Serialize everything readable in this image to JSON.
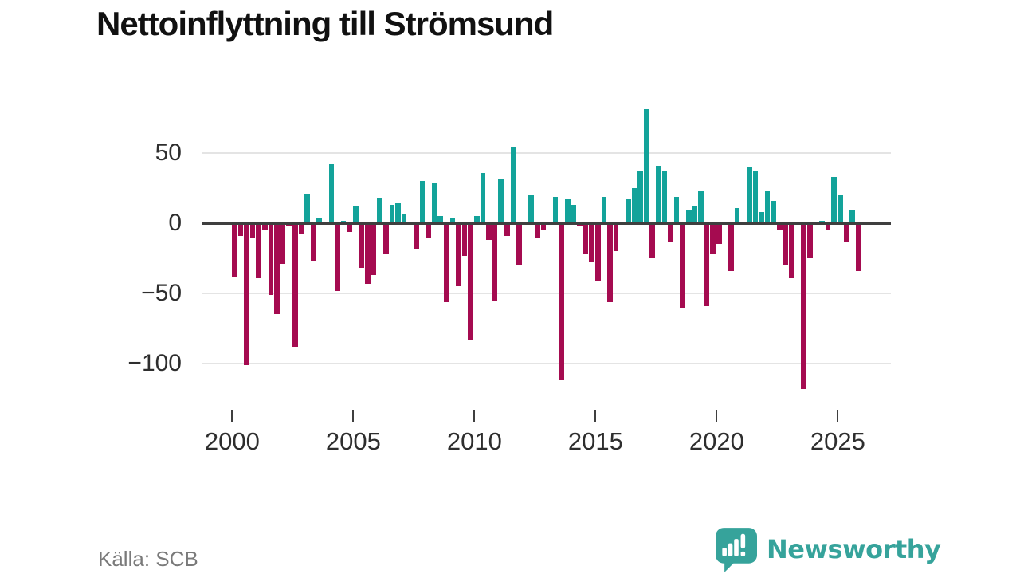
{
  "title": "Nettoinflyttning till Strömsund",
  "footer": {
    "source": "Källa: SCB",
    "brand": "Newsworthy"
  },
  "colors": {
    "positive": "#13a39a",
    "negative": "#a50b50",
    "axis": "#3f3f3f",
    "gridline": "#e4e4e4",
    "tick_label": "#2e2e2e",
    "title_text": "#111111",
    "source_text": "#7a7a7a",
    "brand_teal": "#36a39b",
    "background": "#ffffff"
  },
  "chart_data": {
    "type": "bar",
    "title": "Nettoinflyttning till Strömsund",
    "frequency": "quarterly",
    "x_range": "2000Q1-2025Q4",
    "grid": "horizontal only",
    "legend": "none",
    "y_gridlines": [
      50,
      0,
      -50,
      -100
    ],
    "ylim": [
      -125,
      90
    ],
    "x_tick_years": [
      2000,
      2005,
      2010,
      2015,
      2020,
      2025
    ],
    "series": [
      {
        "year": 2000,
        "quarters": [
          -38,
          -9,
          -101,
          -10
        ]
      },
      {
        "year": 2001,
        "quarters": [
          -39,
          -5,
          -51,
          -65
        ]
      },
      {
        "year": 2002,
        "quarters": [
          -29,
          -2,
          -88,
          -8
        ]
      },
      {
        "year": 2003,
        "quarters": [
          21,
          -27,
          4,
          0
        ]
      },
      {
        "year": 2004,
        "quarters": [
          42,
          -48,
          2,
          -6
        ]
      },
      {
        "year": 2005,
        "quarters": [
          12,
          -32,
          -43,
          -37
        ]
      },
      {
        "year": 2006,
        "quarters": [
          18,
          -22,
          13,
          14
        ]
      },
      {
        "year": 2007,
        "quarters": [
          7,
          0,
          -18,
          30
        ]
      },
      {
        "year": 2008,
        "quarters": [
          -11,
          29,
          5,
          -56
        ]
      },
      {
        "year": 2009,
        "quarters": [
          4,
          -45,
          -23,
          -83
        ]
      },
      {
        "year": 2010,
        "quarters": [
          5,
          36,
          -12,
          -55
        ]
      },
      {
        "year": 2011,
        "quarters": [
          32,
          -9,
          54,
          -30
        ]
      },
      {
        "year": 2012,
        "quarters": [
          0,
          20,
          -10,
          -5
        ]
      },
      {
        "year": 2013,
        "quarters": [
          0,
          19,
          -112,
          17
        ]
      },
      {
        "year": 2014,
        "quarters": [
          13,
          -2,
          -22,
          -28
        ]
      },
      {
        "year": 2015,
        "quarters": [
          -41,
          19,
          -56,
          -20
        ]
      },
      {
        "year": 2016,
        "quarters": [
          0,
          17,
          25,
          37
        ]
      },
      {
        "year": 2017,
        "quarters": [
          81,
          -25,
          41,
          37
        ]
      },
      {
        "year": 2018,
        "quarters": [
          -13,
          19,
          -60,
          9
        ]
      },
      {
        "year": 2019,
        "quarters": [
          12,
          23,
          -59,
          -22
        ]
      },
      {
        "year": 2020,
        "quarters": [
          -15,
          0,
          -34,
          11
        ]
      },
      {
        "year": 2021,
        "quarters": [
          0,
          40,
          37,
          8
        ]
      },
      {
        "year": 2022,
        "quarters": [
          23,
          16,
          -5,
          -30
        ]
      },
      {
        "year": 2023,
        "quarters": [
          -39,
          0,
          -118,
          -25
        ]
      },
      {
        "year": 2024,
        "quarters": [
          0,
          2,
          -5,
          33
        ]
      },
      {
        "year": 2025,
        "quarters": [
          20,
          -13,
          9,
          -34
        ]
      }
    ]
  }
}
